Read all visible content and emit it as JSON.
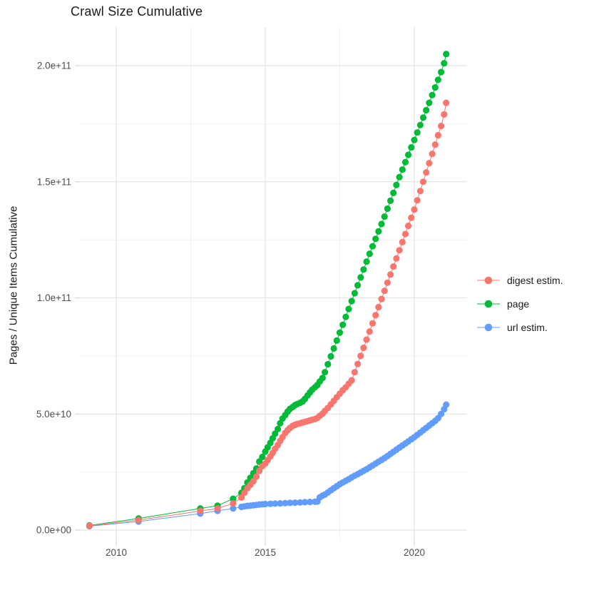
{
  "page": {
    "title": "Crawl Size Cumulative"
  },
  "chart_data": {
    "type": "scatter",
    "title": "Crawl Size Cumulative",
    "xlabel": "",
    "ylabel": "Pages / Unique Items Cumulative",
    "grid": "major+minor",
    "legend_position": "right",
    "x_axis": {
      "major_ticks": [
        2010,
        2015,
        2020
      ],
      "tick_labels": [
        "2010",
        "2015",
        "2020"
      ],
      "minor_ticks": [
        2012.5,
        2017.5
      ],
      "range": [
        2008.8,
        2021.8
      ]
    },
    "y_axis": {
      "major_ticks": [
        0,
        50000000000.0,
        100000000000.0,
        150000000000.0,
        200000000000.0
      ],
      "tick_labels": [
        "0.0e+00",
        "5.0e+10",
        "1.0e+11",
        "1.5e+11",
        "2.0e+11"
      ],
      "minor_ticks": [
        25000000000.0,
        75000000000.0,
        125000000000.0,
        175000000000.0
      ],
      "range": [
        -5000000000.0,
        217000000000.0
      ]
    },
    "series": [
      {
        "name": "digest estim.",
        "color": "#F8766D",
        "points": [
          [
            2009.1,
            1800000000.0
          ],
          [
            2010.75,
            4300000000.0
          ],
          [
            2012.82,
            8200000000.0
          ],
          [
            2013.4,
            9300000000.0
          ],
          [
            2013.92,
            11500000000.0
          ],
          [
            2014.2,
            14000000000.0
          ],
          [
            2014.3,
            16000000000.0
          ],
          [
            2014.4,
            18000000000.0
          ],
          [
            2014.5,
            19500000000.0
          ],
          [
            2014.6,
            21000000000.0
          ],
          [
            2014.7,
            23000000000.0
          ],
          [
            2014.8,
            25500000000.0
          ],
          [
            2014.9,
            27500000000.0
          ],
          [
            2015.0,
            28600000000.0
          ],
          [
            2015.08,
            30100000000.0
          ],
          [
            2015.17,
            31700000000.0
          ],
          [
            2015.25,
            33200000000.0
          ],
          [
            2015.33,
            35000000000.0
          ],
          [
            2015.42,
            36600000000.0
          ],
          [
            2015.5,
            38400000000.0
          ],
          [
            2015.58,
            40000000000.0
          ],
          [
            2015.67,
            41800000000.0
          ],
          [
            2015.75,
            43000000000.0
          ],
          [
            2015.83,
            44000000000.0
          ],
          [
            2015.92,
            44900000000.0
          ],
          [
            2016.0,
            45300000000.0
          ],
          [
            2016.08,
            45700000000.0
          ],
          [
            2016.17,
            46000000000.0
          ],
          [
            2016.25,
            46300000000.0
          ],
          [
            2016.33,
            46600000000.0
          ],
          [
            2016.42,
            46900000000.0
          ],
          [
            2016.5,
            47200000000.0
          ],
          [
            2016.58,
            47500000000.0
          ],
          [
            2016.67,
            47800000000.0
          ],
          [
            2016.75,
            48300000000.0
          ],
          [
            2016.83,
            49200000000.0
          ],
          [
            2016.92,
            50100000000.0
          ],
          [
            2017.0,
            51300000000.0
          ],
          [
            2017.1,
            52600000000.0
          ],
          [
            2017.2,
            54100000000.0
          ],
          [
            2017.3,
            55600000000.0
          ],
          [
            2017.4,
            57200000000.0
          ],
          [
            2017.5,
            58700000000.0
          ],
          [
            2017.6,
            60200000000.0
          ],
          [
            2017.7,
            61500000000.0
          ],
          [
            2017.8,
            63000000000.0
          ],
          [
            2017.9,
            64500000000.0
          ],
          [
            2018.0,
            68000000000.0
          ],
          [
            2018.1,
            71500000000.0
          ],
          [
            2018.2,
            75000000000.0
          ],
          [
            2018.3,
            78500000000.0
          ],
          [
            2018.4,
            82000000000.0
          ],
          [
            2018.5,
            85500000000.0
          ],
          [
            2018.6,
            89000000000.0
          ],
          [
            2018.7,
            92500000000.0
          ],
          [
            2018.8,
            96000000000.0
          ],
          [
            2018.9,
            99500000000.0
          ],
          [
            2019.0,
            103000000000.0
          ],
          [
            2019.1,
            106500000000.0
          ],
          [
            2019.2,
            110000000000.0
          ],
          [
            2019.3,
            113500000000.0
          ],
          [
            2019.4,
            117000000000.0
          ],
          [
            2019.5,
            120500000000.0
          ],
          [
            2019.6,
            124000000000.0
          ],
          [
            2019.7,
            127500000000.0
          ],
          [
            2019.8,
            131000000000.0
          ],
          [
            2019.9,
            134500000000.0
          ],
          [
            2020.0,
            138000000000.0
          ],
          [
            2020.1,
            142000000000.0
          ],
          [
            2020.2,
            146000000000.0
          ],
          [
            2020.3,
            150000000000.0
          ],
          [
            2020.4,
            154000000000.0
          ],
          [
            2020.5,
            158000000000.0
          ],
          [
            2020.6,
            162000000000.0
          ],
          [
            2020.7,
            166000000000.0
          ],
          [
            2020.8,
            170000000000.0
          ],
          [
            2020.9,
            174000000000.0
          ],
          [
            2021.0,
            179000000000.0
          ],
          [
            2021.07,
            184000000000.0
          ]
        ]
      },
      {
        "name": "page",
        "color": "#00BA38",
        "points": [
          [
            2009.1,
            2000000000.0
          ],
          [
            2010.75,
            5000000000.0
          ],
          [
            2012.82,
            9300000000.0
          ],
          [
            2013.4,
            10500000000.0
          ],
          [
            2013.92,
            13500000000.0
          ],
          [
            2014.2,
            16000000000.0
          ],
          [
            2014.3,
            18000000000.0
          ],
          [
            2014.4,
            20500000000.0
          ],
          [
            2014.5,
            22500000000.0
          ],
          [
            2014.6,
            24500000000.0
          ],
          [
            2014.7,
            26500000000.0
          ],
          [
            2014.8,
            29500000000.0
          ],
          [
            2014.9,
            31500000000.0
          ],
          [
            2015.0,
            33800000000.0
          ],
          [
            2015.08,
            35600000000.0
          ],
          [
            2015.17,
            37500000000.0
          ],
          [
            2015.25,
            39500000000.0
          ],
          [
            2015.33,
            41500000000.0
          ],
          [
            2015.42,
            43500000000.0
          ],
          [
            2015.5,
            46000000000.0
          ],
          [
            2015.58,
            48000000000.0
          ],
          [
            2015.67,
            49500000000.0
          ],
          [
            2015.75,
            51000000000.0
          ],
          [
            2015.83,
            52200000000.0
          ],
          [
            2015.92,
            53000000000.0
          ],
          [
            2016.0,
            53800000000.0
          ],
          [
            2016.08,
            54300000000.0
          ],
          [
            2016.17,
            54800000000.0
          ],
          [
            2016.25,
            55400000000.0
          ],
          [
            2016.33,
            56500000000.0
          ],
          [
            2016.42,
            58000000000.0
          ],
          [
            2016.5,
            59300000000.0
          ],
          [
            2016.58,
            60500000000.0
          ],
          [
            2016.67,
            61500000000.0
          ],
          [
            2016.75,
            62500000000.0
          ],
          [
            2016.83,
            64000000000.0
          ],
          [
            2016.92,
            65500000000.0
          ],
          [
            2017.0,
            68000000000.0
          ],
          [
            2017.1,
            71400000000.0
          ],
          [
            2017.2,
            74800000000.0
          ],
          [
            2017.3,
            78200000000.0
          ],
          [
            2017.4,
            81600000000.0
          ],
          [
            2017.5,
            85000000000.0
          ],
          [
            2017.6,
            88400000000.0
          ],
          [
            2017.7,
            91800000000.0
          ],
          [
            2017.8,
            95200000000.0
          ],
          [
            2017.9,
            98600000000.0
          ],
          [
            2018.0,
            102000000000.0
          ],
          [
            2018.1,
            105400000000.0
          ],
          [
            2018.2,
            108800000000.0
          ],
          [
            2018.3,
            112200000000.0
          ],
          [
            2018.4,
            115600000000.0
          ],
          [
            2018.5,
            119000000000.0
          ],
          [
            2018.6,
            122200000000.0
          ],
          [
            2018.7,
            125400000000.0
          ],
          [
            2018.8,
            128600000000.0
          ],
          [
            2018.9,
            131800000000.0
          ],
          [
            2019.0,
            135000000000.0
          ],
          [
            2019.1,
            138400000000.0
          ],
          [
            2019.2,
            141800000000.0
          ],
          [
            2019.3,
            145200000000.0
          ],
          [
            2019.4,
            148600000000.0
          ],
          [
            2019.5,
            152000000000.0
          ],
          [
            2019.6,
            155200000000.0
          ],
          [
            2019.7,
            158400000000.0
          ],
          [
            2019.8,
            161600000000.0
          ],
          [
            2019.9,
            164800000000.0
          ],
          [
            2020.0,
            168000000000.0
          ],
          [
            2020.1,
            171200000000.0
          ],
          [
            2020.2,
            174400000000.0
          ],
          [
            2020.3,
            177600000000.0
          ],
          [
            2020.4,
            180800000000.0
          ],
          [
            2020.5,
            184000000000.0
          ],
          [
            2020.6,
            187300000000.0
          ],
          [
            2020.7,
            190600000000.0
          ],
          [
            2020.8,
            193900000000.0
          ],
          [
            2020.9,
            197200000000.0
          ],
          [
            2021.0,
            201000000000.0
          ],
          [
            2021.07,
            205000000000.0
          ]
        ]
      },
      {
        "name": "url estim.",
        "color": "#619CFF",
        "points": [
          [
            2009.1,
            1700000000.0
          ],
          [
            2010.75,
            3700000000.0
          ],
          [
            2012.82,
            7100000000.0
          ],
          [
            2013.4,
            8300000000.0
          ],
          [
            2013.92,
            9300000000.0
          ],
          [
            2014.2,
            10000000000.0
          ],
          [
            2014.3,
            10200000000.0
          ],
          [
            2014.4,
            10400000000.0
          ],
          [
            2014.5,
            10500000000.0
          ],
          [
            2014.6,
            10700000000.0
          ],
          [
            2014.7,
            10800000000.0
          ],
          [
            2014.8,
            11000000000.0
          ],
          [
            2014.9,
            11100000000.0
          ],
          [
            2015.0,
            11200000000.0
          ],
          [
            2015.17,
            11300000000.0
          ],
          [
            2015.33,
            11400000000.0
          ],
          [
            2015.5,
            11500000000.0
          ],
          [
            2015.67,
            11600000000.0
          ],
          [
            2015.83,
            11700000000.0
          ],
          [
            2016.0,
            11800000000.0
          ],
          [
            2016.17,
            11900000000.0
          ],
          [
            2016.33,
            12000000000.0
          ],
          [
            2016.5,
            12100000000.0
          ],
          [
            2016.67,
            12200000000.0
          ],
          [
            2016.75,
            12300000000.0
          ],
          [
            2016.83,
            14100000000.0
          ],
          [
            2016.92,
            14800000000.0
          ],
          [
            2017.0,
            15300000000.0
          ],
          [
            2017.1,
            16200000000.0
          ],
          [
            2017.2,
            17100000000.0
          ],
          [
            2017.3,
            18000000000.0
          ],
          [
            2017.4,
            18900000000.0
          ],
          [
            2017.5,
            19800000000.0
          ],
          [
            2017.6,
            20500000000.0
          ],
          [
            2017.7,
            21200000000.0
          ],
          [
            2017.8,
            21900000000.0
          ],
          [
            2017.9,
            22700000000.0
          ],
          [
            2018.0,
            23400000000.0
          ],
          [
            2018.1,
            24100000000.0
          ],
          [
            2018.2,
            24800000000.0
          ],
          [
            2018.3,
            25500000000.0
          ],
          [
            2018.4,
            26200000000.0
          ],
          [
            2018.5,
            27000000000.0
          ],
          [
            2018.6,
            27800000000.0
          ],
          [
            2018.7,
            28600000000.0
          ],
          [
            2018.8,
            29400000000.0
          ],
          [
            2018.9,
            30200000000.0
          ],
          [
            2019.0,
            31000000000.0
          ],
          [
            2019.1,
            31900000000.0
          ],
          [
            2019.2,
            32800000000.0
          ],
          [
            2019.3,
            33700000000.0
          ],
          [
            2019.4,
            34600000000.0
          ],
          [
            2019.5,
            35500000000.0
          ],
          [
            2019.6,
            36400000000.0
          ],
          [
            2019.7,
            37300000000.0
          ],
          [
            2019.8,
            38200000000.0
          ],
          [
            2019.9,
            39100000000.0
          ],
          [
            2020.0,
            40000000000.0
          ],
          [
            2020.1,
            41000000000.0
          ],
          [
            2020.2,
            42000000000.0
          ],
          [
            2020.3,
            43000000000.0
          ],
          [
            2020.4,
            44000000000.0
          ],
          [
            2020.5,
            45000000000.0
          ],
          [
            2020.6,
            46000000000.0
          ],
          [
            2020.7,
            47000000000.0
          ],
          [
            2020.8,
            48200000000.0
          ],
          [
            2020.9,
            50000000000.0
          ],
          [
            2021.0,
            52000000000.0
          ],
          [
            2021.07,
            54000000000.0
          ]
        ]
      }
    ]
  }
}
